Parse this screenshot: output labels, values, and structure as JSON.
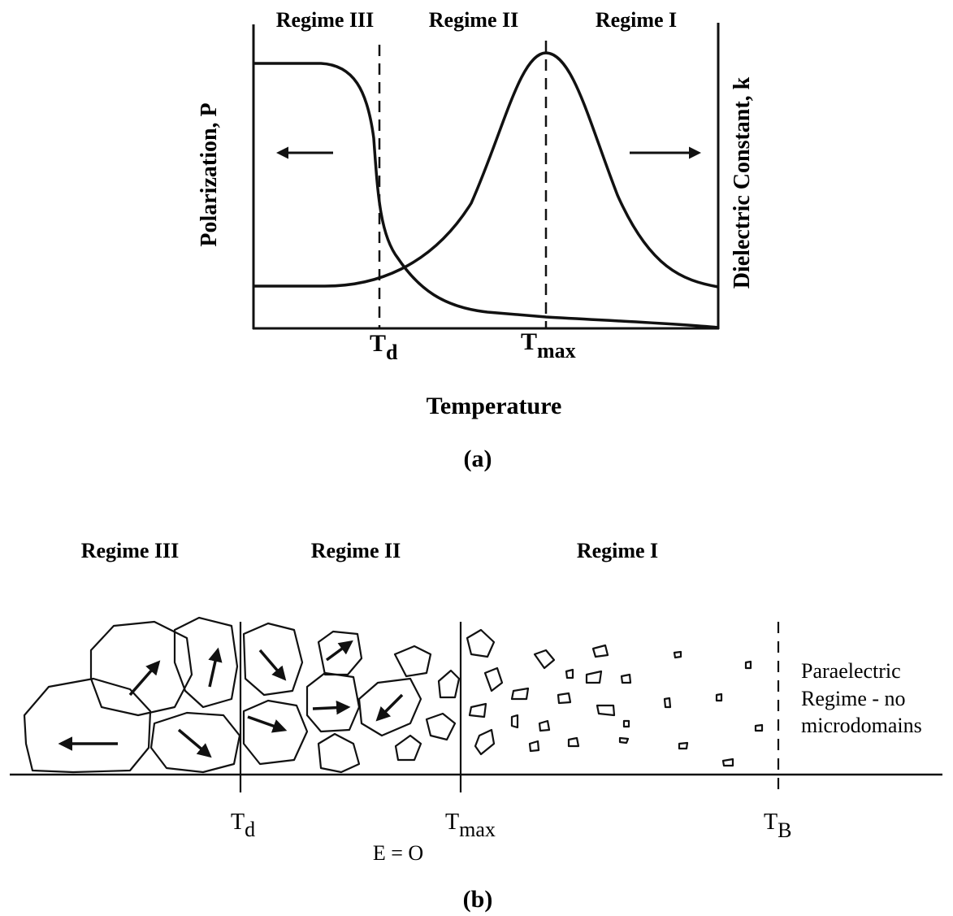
{
  "panel_a": {
    "regimes": [
      "Regime III",
      "Regime II",
      "Regime I"
    ],
    "y_label_left": "Polarization, P",
    "y_label_right": "Dielectric Constant, k",
    "markers": [
      {
        "main": "T",
        "sub": "d"
      },
      {
        "main": "T",
        "sub": "max"
      }
    ],
    "x_label": "Temperature",
    "caption": "(a)"
  },
  "panel_b": {
    "regimes": [
      "Regime III",
      "Regime II",
      "Regime I"
    ],
    "markers": [
      {
        "main": "T",
        "sub": "d"
      },
      {
        "main": "T",
        "sub": "max"
      },
      {
        "main": "T",
        "sub": "B"
      }
    ],
    "field": "E = O",
    "note": [
      "Paraelectric",
      "Regime - no",
      "microdomains"
    ],
    "caption": "(b)"
  }
}
